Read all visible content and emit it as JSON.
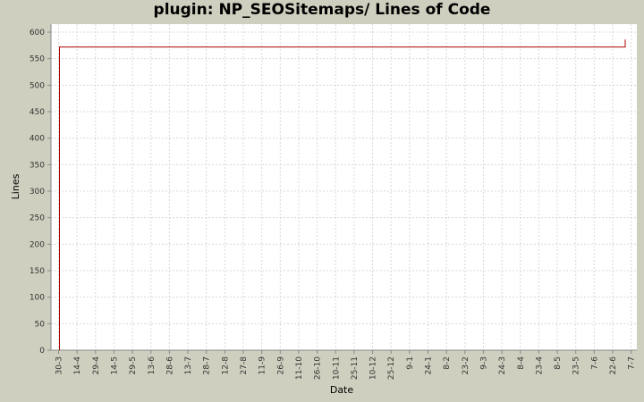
{
  "header": {
    "title": "plugin: NP_SEOSitemaps/ Lines of Code"
  },
  "colors": {
    "background": "#cfcfbf",
    "plot_bg": "#ffffff",
    "grid": "#d8d8d8",
    "series": "#aa0000"
  },
  "chart_data": {
    "type": "line",
    "title": "plugin: NP_SEOSitemaps/ Lines of Code",
    "xlabel": "Date",
    "ylabel": "Lines",
    "ylim": [
      0,
      600
    ],
    "yticks": [
      0,
      50,
      100,
      150,
      200,
      250,
      300,
      350,
      400,
      450,
      500,
      550,
      600
    ],
    "categories": [
      "30-3",
      "14-4",
      "29-4",
      "14-5",
      "29-5",
      "13-6",
      "28-6",
      "13-7",
      "28-7",
      "12-8",
      "27-8",
      "11-9",
      "26-9",
      "11-10",
      "26-10",
      "10-11",
      "25-11",
      "10-12",
      "25-12",
      "9-1",
      "24-1",
      "8-2",
      "23-2",
      "9-3",
      "24-3",
      "8-4",
      "23-4",
      "8-5",
      "23-5",
      "7-6",
      "22-6",
      "7-7"
    ],
    "grid": true,
    "legend": null,
    "series": [
      {
        "name": "Lines of Code",
        "points": [
          {
            "x": "30-3",
            "y": 0
          },
          {
            "x": "30-3",
            "y": 572
          },
          {
            "x": "22-6+",
            "y": 572
          },
          {
            "x": "22-6+",
            "y": 586
          }
        ]
      }
    ]
  }
}
